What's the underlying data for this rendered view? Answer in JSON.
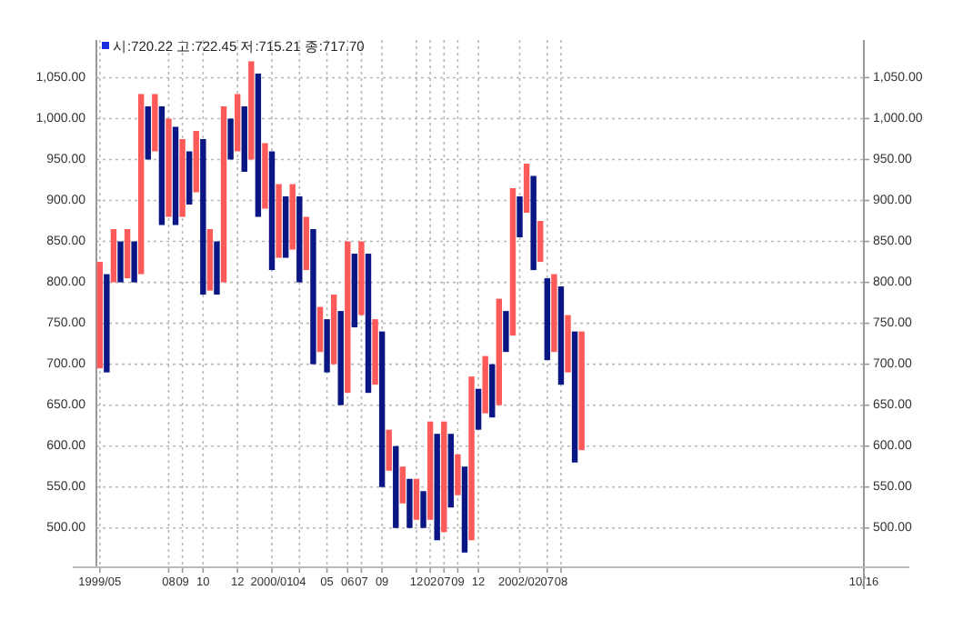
{
  "chart_data": {
    "type": "bar",
    "categories": [
      "1999/05",
      null,
      null,
      null,
      null,
      null,
      null,
      null,
      null,
      null,
      "08",
      null,
      "09",
      null,
      null,
      "10",
      null,
      null,
      null,
      null,
      "12",
      null,
      null,
      null,
      null,
      "2000/01",
      null,
      null,
      null,
      "04",
      null,
      null,
      null,
      "05",
      null,
      null,
      "06",
      null,
      "07",
      null,
      null,
      "09",
      null,
      null,
      null,
      null,
      "12",
      null,
      "02",
      null,
      "07",
      null,
      "09",
      null,
      null,
      "12",
      null,
      null,
      null,
      null,
      null,
      "2002/02",
      null,
      null,
      null,
      "07",
      null,
      "08",
      null,
      null,
      null,
      null,
      null,
      null,
      null,
      null,
      null,
      null,
      null,
      null,
      null,
      null,
      null,
      null,
      null,
      null,
      null,
      null,
      null,
      null,
      null,
      null,
      null,
      null,
      null,
      null,
      null,
      null,
      null,
      null,
      null,
      null,
      null,
      null,
      null,
      null,
      null,
      null,
      null,
      null,
      null,
      "10/16"
    ],
    "values": [
      130,
      120,
      65,
      50,
      60,
      50,
      220,
      65,
      70,
      145,
      120,
      120,
      95,
      65,
      75,
      190,
      75,
      65,
      215,
      50,
      70,
      80,
      120,
      175,
      80,
      145,
      90,
      75,
      80,
      105,
      65,
      165,
      55,
      65,
      85,
      115,
      185,
      90,
      90,
      170,
      80,
      190,
      50,
      100,
      45,
      60,
      50,
      45,
      120,
      130,
      135,
      90,
      50,
      105,
      200,
      50,
      70,
      65,
      130,
      50,
      180,
      50,
      60,
      115,
      50,
      100,
      95,
      120,
      70,
      160,
      145,
      null,
      null,
      null,
      null,
      null,
      null,
      null,
      null,
      null,
      null,
      null,
      null,
      null,
      null,
      null,
      null,
      null,
      null,
      null,
      null,
      null,
      null,
      null,
      null,
      null,
      null,
      null,
      null,
      null,
      null,
      null,
      null,
      null,
      null,
      null,
      null,
      null,
      null,
      null,
      null,
      null
    ],
    "base": [
      695,
      690,
      800,
      800,
      805,
      800,
      810,
      950,
      960,
      870,
      880,
      870,
      880,
      895,
      910,
      785,
      790,
      785,
      800,
      950,
      960,
      935,
      950,
      880,
      890,
      815,
      830,
      830,
      840,
      800,
      815,
      700,
      715,
      690,
      700,
      650,
      665,
      745,
      760,
      665,
      675,
      550,
      570,
      500,
      530,
      500,
      510,
      500,
      510,
      485,
      495,
      525,
      540,
      470,
      485,
      620,
      640,
      635,
      650,
      715,
      735,
      855,
      885,
      815,
      825,
      705,
      715,
      675,
      690,
      580,
      595,
      null,
      null,
      null,
      null,
      null,
      null,
      null,
      null,
      null,
      null,
      null,
      null,
      null,
      null,
      null,
      null,
      null,
      null,
      null,
      null,
      null,
      null,
      null,
      null,
      null,
      null,
      null,
      null,
      null,
      null,
      null,
      null,
      null,
      null,
      null,
      null,
      null,
      null,
      null,
      null,
      null
    ],
    "colors": [
      "#ff5a5a",
      "#0a1683",
      "#ff5a5a",
      "#0a1683",
      "#ff5a5a",
      "#0a1683",
      "#ff5a5a",
      "#0a1683",
      "#ff5a5a",
      "#0a1683",
      "#ff5a5a",
      "#0a1683",
      "#ff5a5a",
      "#0a1683",
      "#ff5a5a",
      "#0a1683",
      "#ff5a5a",
      "#0a1683",
      "#ff5a5a",
      "#0a1683",
      "#ff5a5a",
      "#0a1683",
      "#ff5a5a",
      "#0a1683",
      "#ff5a5a",
      "#0a1683",
      "#ff5a5a",
      "#0a1683",
      "#ff5a5a",
      "#0a1683",
      "#ff5a5a",
      "#0a1683",
      "#ff5a5a",
      "#0a1683",
      "#ff5a5a",
      "#0a1683",
      "#ff5a5a",
      "#0a1683",
      "#ff5a5a",
      "#0a1683",
      "#ff5a5a",
      "#0a1683",
      "#ff5a5a",
      "#0a1683",
      "#ff5a5a",
      "#0a1683",
      "#ff5a5a",
      "#0a1683",
      "#ff5a5a",
      "#0a1683",
      "#ff5a5a",
      "#0a1683",
      "#ff5a5a",
      "#0a1683",
      "#ff5a5a",
      "#0a1683",
      "#ff5a5a",
      "#0a1683",
      "#ff5a5a",
      "#0a1683",
      "#ff5a5a",
      "#0a1683",
      "#ff5a5a",
      "#0a1683",
      "#ff5a5a",
      "#0a1683",
      "#ff5a5a",
      "#0a1683",
      "#ff5a5a",
      "#0a1683",
      "#ff5a5a",
      null,
      null,
      null,
      null,
      null,
      null,
      null,
      null,
      null,
      null,
      null,
      null,
      null,
      null,
      null,
      null,
      null,
      null,
      null,
      null,
      null,
      null,
      null,
      null,
      null,
      null,
      null,
      null,
      null,
      null,
      null,
      null,
      null,
      null,
      null,
      null,
      null,
      null,
      null,
      null,
      null
    ],
    "ylim": [
      452,
      1096
    ],
    "yticks": [
      {
        "value": 500,
        "label": "500.00"
      },
      {
        "value": 550,
        "label": "550.00"
      },
      {
        "value": 600,
        "label": "600.00"
      },
      {
        "value": 650,
        "label": "650.00"
      },
      {
        "value": 700,
        "label": "700.00"
      },
      {
        "value": 750,
        "label": "750.00"
      },
      {
        "value": 800,
        "label": "800.00"
      },
      {
        "value": 850,
        "label": "850.00"
      },
      {
        "value": 900,
        "label": "900.00"
      },
      {
        "value": 950,
        "label": "950.00"
      },
      {
        "value": 1000,
        "label": "1,000.00"
      },
      {
        "value": 1050,
        "label": "1,050.00"
      }
    ],
    "y2lim": [
      452,
      1096
    ],
    "y2ticks": [
      {
        "value": 500,
        "label": "500.00"
      },
      {
        "value": 550,
        "label": "550.00"
      },
      {
        "value": 600,
        "label": "600.00"
      },
      {
        "value": 650,
        "label": "650.00"
      },
      {
        "value": 700,
        "label": "700.00"
      },
      {
        "value": 750,
        "label": "750.00"
      },
      {
        "value": 800,
        "label": "800.00"
      },
      {
        "value": 850,
        "label": "850.00"
      },
      {
        "value": 900,
        "label": "900.00"
      },
      {
        "value": 950,
        "label": "950.00"
      },
      {
        "value": 1000,
        "label": "1,000.00"
      },
      {
        "value": 1050,
        "label": "1,050.00"
      }
    ],
    "grid": true,
    "annotations": [
      "시:720.22 고:722.45 저:715.21 종:717.70"
    ]
  }
}
